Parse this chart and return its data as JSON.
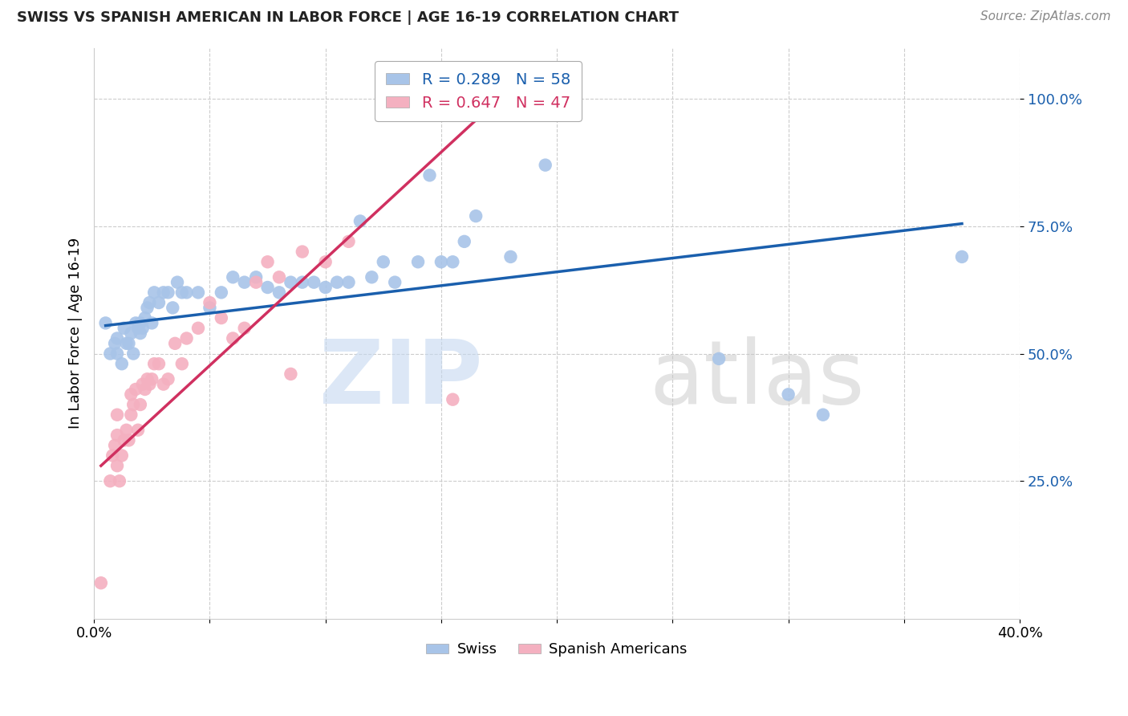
{
  "title": "SWISS VS SPANISH AMERICAN IN LABOR FORCE | AGE 16-19 CORRELATION CHART",
  "source": "Source: ZipAtlas.com",
  "ylabel": "In Labor Force | Age 16-19",
  "xlim": [
    0.0,
    0.4
  ],
  "ylim": [
    -0.02,
    1.1
  ],
  "yticks": [
    0.25,
    0.5,
    0.75,
    1.0
  ],
  "ytick_labels": [
    "25.0%",
    "50.0%",
    "75.0%",
    "100.0%"
  ],
  "xticks": [
    0.0,
    0.05,
    0.1,
    0.15,
    0.2,
    0.25,
    0.3,
    0.35,
    0.4
  ],
  "xtick_labels": [
    "0.0%",
    "",
    "",
    "",
    "",
    "",
    "",
    "",
    "40.0%"
  ],
  "swiss_color": "#a8c4e8",
  "spanish_color": "#f4b0c0",
  "swiss_line_color": "#1a5fad",
  "spanish_line_color": "#d03060",
  "R_swiss": 0.289,
  "N_swiss": 58,
  "R_spanish": 0.647,
  "N_spanish": 47,
  "swiss_x": [
    0.005,
    0.007,
    0.009,
    0.01,
    0.01,
    0.012,
    0.013,
    0.014,
    0.015,
    0.016,
    0.017,
    0.018,
    0.019,
    0.02,
    0.02,
    0.021,
    0.022,
    0.023,
    0.024,
    0.025,
    0.026,
    0.028,
    0.03,
    0.032,
    0.034,
    0.036,
    0.038,
    0.04,
    0.045,
    0.05,
    0.055,
    0.06,
    0.065,
    0.07,
    0.075,
    0.08,
    0.085,
    0.09,
    0.095,
    0.1,
    0.105,
    0.11,
    0.115,
    0.12,
    0.125,
    0.13,
    0.14,
    0.145,
    0.15,
    0.155,
    0.16,
    0.165,
    0.18,
    0.195,
    0.27,
    0.3,
    0.315,
    0.375
  ],
  "swiss_y": [
    0.56,
    0.5,
    0.52,
    0.5,
    0.53,
    0.48,
    0.55,
    0.52,
    0.52,
    0.54,
    0.5,
    0.56,
    0.55,
    0.54,
    0.56,
    0.55,
    0.57,
    0.59,
    0.6,
    0.56,
    0.62,
    0.6,
    0.62,
    0.62,
    0.59,
    0.64,
    0.62,
    0.62,
    0.62,
    0.59,
    0.62,
    0.65,
    0.64,
    0.65,
    0.63,
    0.62,
    0.64,
    0.64,
    0.64,
    0.63,
    0.64,
    0.64,
    0.76,
    0.65,
    0.68,
    0.64,
    0.68,
    0.85,
    0.68,
    0.68,
    0.72,
    0.77,
    0.69,
    0.87,
    0.49,
    0.42,
    0.38,
    0.69
  ],
  "spanish_x": [
    0.003,
    0.007,
    0.008,
    0.009,
    0.01,
    0.01,
    0.01,
    0.011,
    0.012,
    0.013,
    0.014,
    0.015,
    0.016,
    0.016,
    0.017,
    0.018,
    0.019,
    0.02,
    0.021,
    0.022,
    0.023,
    0.024,
    0.025,
    0.026,
    0.028,
    0.03,
    0.032,
    0.035,
    0.038,
    0.04,
    0.045,
    0.05,
    0.055,
    0.06,
    0.065,
    0.07,
    0.075,
    0.08,
    0.085,
    0.09,
    0.1,
    0.11,
    0.13,
    0.155,
    0.16,
    0.165,
    0.175
  ],
  "spanish_y": [
    0.05,
    0.25,
    0.3,
    0.32,
    0.28,
    0.34,
    0.38,
    0.25,
    0.3,
    0.33,
    0.35,
    0.33,
    0.38,
    0.42,
    0.4,
    0.43,
    0.35,
    0.4,
    0.44,
    0.43,
    0.45,
    0.44,
    0.45,
    0.48,
    0.48,
    0.44,
    0.45,
    0.52,
    0.48,
    0.53,
    0.55,
    0.6,
    0.57,
    0.53,
    0.55,
    0.64,
    0.68,
    0.65,
    0.46,
    0.7,
    0.68,
    0.72,
    1.0,
    0.41,
    1.0,
    1.0,
    1.0
  ],
  "swiss_line_x": [
    0.005,
    0.375
  ],
  "swiss_line_y": [
    0.555,
    0.755
  ],
  "spanish_line_x": [
    0.003,
    0.175
  ],
  "spanish_line_y": [
    0.28,
    1.0
  ]
}
